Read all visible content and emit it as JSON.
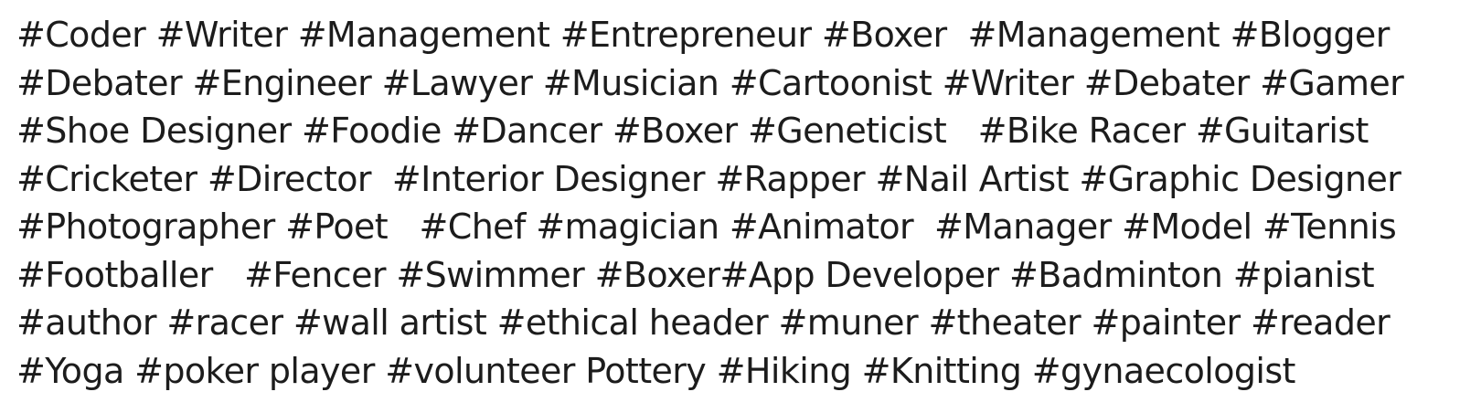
{
  "tag_lines": [
    "#Coder #Writer #Management #Entrepreneur #Boxer  #Management #Blogger",
    "#Debater #Engineer #Lawyer #Musician #Cartoonist #Writer #Debater #Gamer",
    "#Shoe Designer #Foodie #Dancer #Boxer #Geneticist   #Bike Racer #Guitarist",
    "#Cricketer #Director  #Interior Designer #Rapper #Nail Artist #Graphic Designer",
    "#Photographer #Poet   #Chef #magician #Animator  #Manager #Model #Tennis",
    "#Footballer   #Fencer #Swimmer #Boxer#App Developer #Badminton #pianist",
    "#author #racer #wall artist #ethical header #muner #theater #painter #reader",
    "#Yoga #poker player #volunteer Pottery #Hiking #Knitting #gynaecologist"
  ]
}
